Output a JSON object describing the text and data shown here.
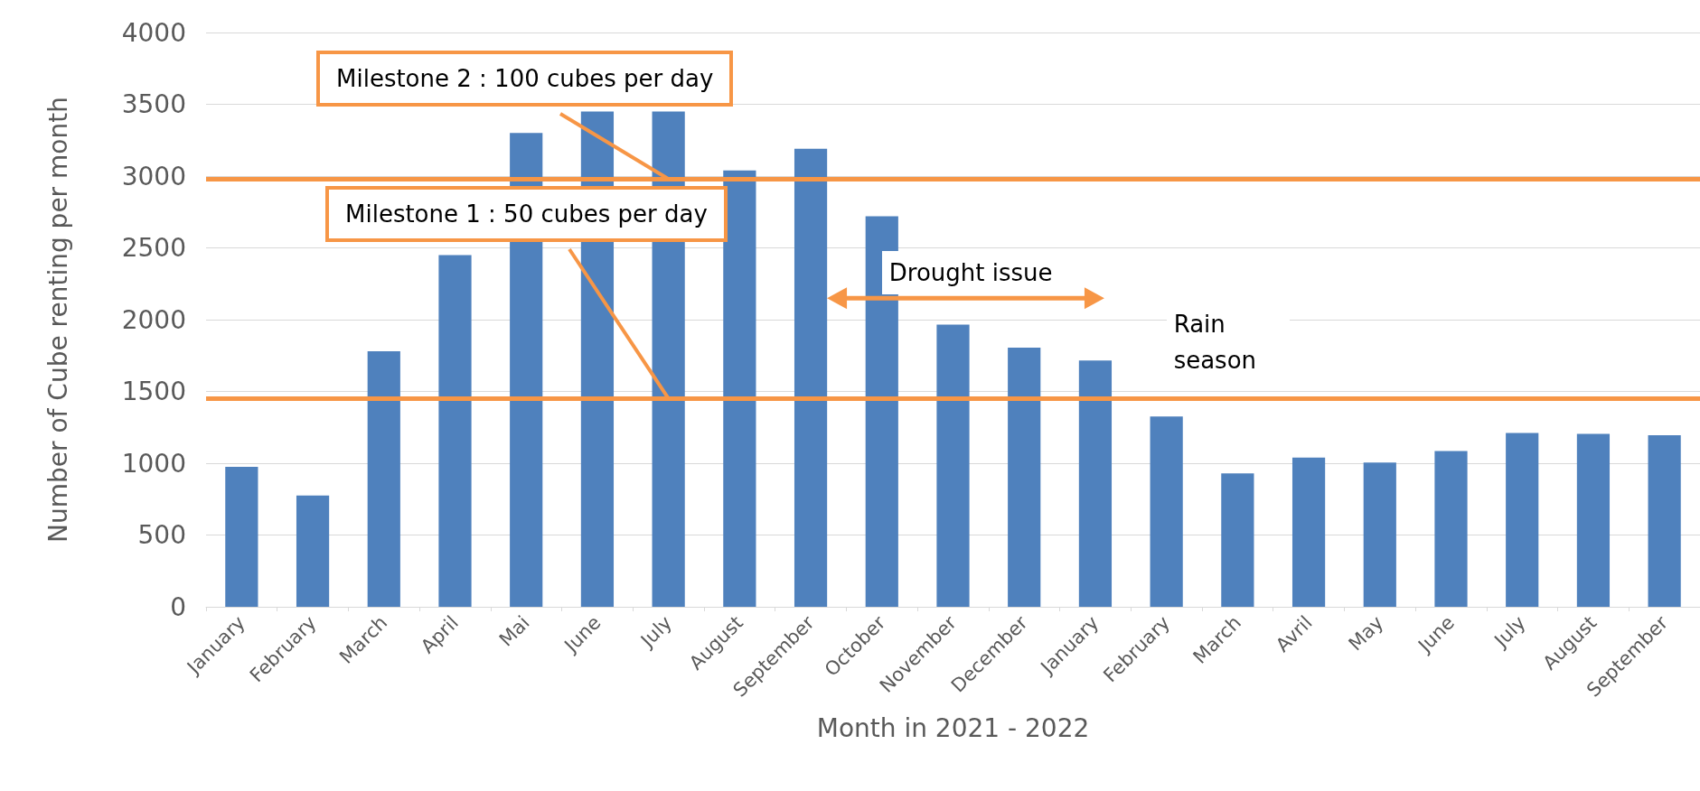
{
  "chart_data": {
    "type": "bar",
    "xlabel": "Month in 2021 - 2022",
    "ylabel": "Number of Cube renting per month",
    "categories": [
      "January",
      "February",
      "March",
      "April",
      "Mai",
      "June",
      "July",
      "August",
      "September",
      "October",
      "November",
      "December",
      "January",
      "February",
      "March",
      "Avril",
      "May",
      "June",
      "July",
      "August",
      "September"
    ],
    "values": [
      975,
      775,
      1780,
      2450,
      3300,
      3450,
      3450,
      3040,
      3190,
      2720,
      1965,
      1805,
      1715,
      1325,
      930,
      1040,
      1005,
      1085,
      1210,
      1205,
      1195
    ],
    "color": "#4f81bd",
    "ylim": [
      0,
      4000
    ],
    "yticks": [
      0,
      500,
      1000,
      1500,
      2000,
      2500,
      3000,
      3500,
      4000
    ],
    "grid": "y",
    "ref_lines": [
      {
        "axis": "y",
        "value": 2980,
        "color": "#f79646"
      },
      {
        "axis": "y",
        "value": 1450,
        "color": "#f79646"
      }
    ],
    "annotations": [
      {
        "text": "Milestone 2 : 100 cubes per day",
        "x": "July",
        "y": 2980
      },
      {
        "text": "Milestone 1 : 50 cubes per day",
        "x": "July",
        "y": 1450
      },
      "Drought issue",
      "Rain season"
    ]
  }
}
